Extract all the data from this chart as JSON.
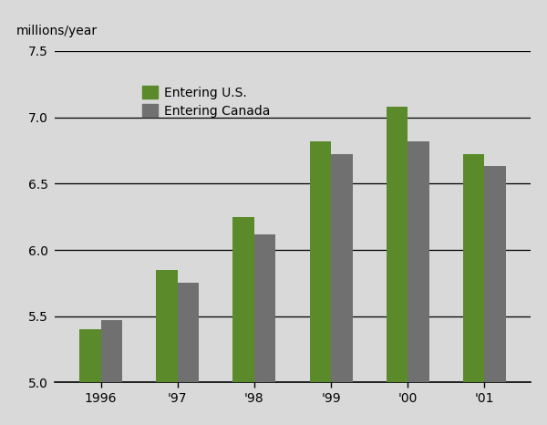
{
  "years": [
    "1996",
    "'97",
    "'98",
    "'99",
    "'00",
    "'01"
  ],
  "entering_us": [
    5.4,
    5.85,
    6.25,
    6.82,
    7.08,
    6.72
  ],
  "entering_canada": [
    5.47,
    5.75,
    6.12,
    6.72,
    6.82,
    6.63
  ],
  "color_us": "#5a8a2a",
  "color_canada": "#707070",
  "ylabel": "millions/year",
  "ylim_min": 5.0,
  "ylim_max": 7.5,
  "yticks": [
    5.0,
    5.5,
    6.0,
    6.5,
    7.0,
    7.5
  ],
  "background_color": "#d9d9d9",
  "legend_labels": [
    "Entering U.S.",
    "Entering Canada"
  ],
  "bar_width": 0.28,
  "tick_fontsize": 10,
  "legend_fontsize": 10,
  "ylabel_fontsize": 10
}
